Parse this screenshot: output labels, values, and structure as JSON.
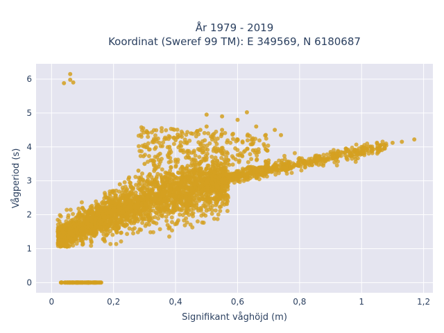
{
  "chart_data": {
    "type": "scatter",
    "title_lines": [
      "År 1979 - 2019",
      "Koordinat (Sweref 99 TM): E 349569, N 6180687"
    ],
    "xlabel": "Signifikant våghöjd (m)",
    "ylabel": "Vågperiod (s)",
    "xlim": [
      -0.05,
      1.23
    ],
    "ylim": [
      -0.3,
      6.45
    ],
    "x_ticks": [
      0,
      0.2,
      0.4,
      0.6,
      0.8,
      1,
      1.2
    ],
    "x_tick_labels": [
      "0",
      "0,2",
      "0,4",
      "0,6",
      "0,8",
      "1",
      "1,2"
    ],
    "y_ticks": [
      0,
      1,
      2,
      3,
      4,
      5,
      6
    ],
    "y_tick_labels": [
      "0",
      "1",
      "2",
      "3",
      "4",
      "5",
      "6"
    ],
    "grid": true,
    "marker_color": "#d4a020",
    "points_sample": {
      "x": [
        0.06,
        0.07,
        0.04,
        0.06,
        0.03,
        0.05,
        0.08,
        0.1,
        0.12,
        0.14,
        0.16,
        0.02,
        0.05,
        0.08,
        0.1,
        0.12,
        0.15,
        0.18,
        0.2,
        0.22,
        0.25,
        0.28,
        0.3,
        0.32,
        0.35,
        0.38,
        0.4,
        0.42,
        0.45,
        0.48,
        0.5,
        0.55,
        0.6,
        0.65,
        0.7,
        0.75,
        0.8,
        0.85,
        0.9,
        0.95,
        1.0,
        1.05,
        1.1,
        1.13,
        1.17,
        0.5,
        0.55,
        0.6,
        0.63,
        0.66,
        0.72,
        0.74
      ],
      "y": [
        6.15,
        5.9,
        5.88,
        5.98,
        0.0,
        0.0,
        0.0,
        0.0,
        0.0,
        0.0,
        0.0,
        1.5,
        1.6,
        1.8,
        2.0,
        2.1,
        2.3,
        2.5,
        2.7,
        2.9,
        3.1,
        3.3,
        3.5,
        3.6,
        3.8,
        4.0,
        4.2,
        4.3,
        4.4,
        4.5,
        4.6,
        4.5,
        4.2,
        3.9,
        3.6,
        3.5,
        3.6,
        3.7,
        3.85,
        3.95,
        4.0,
        4.1,
        4.12,
        4.15,
        4.22,
        4.95,
        4.9,
        4.8,
        5.02,
        4.6,
        4.5,
        4.35
      ]
    }
  }
}
